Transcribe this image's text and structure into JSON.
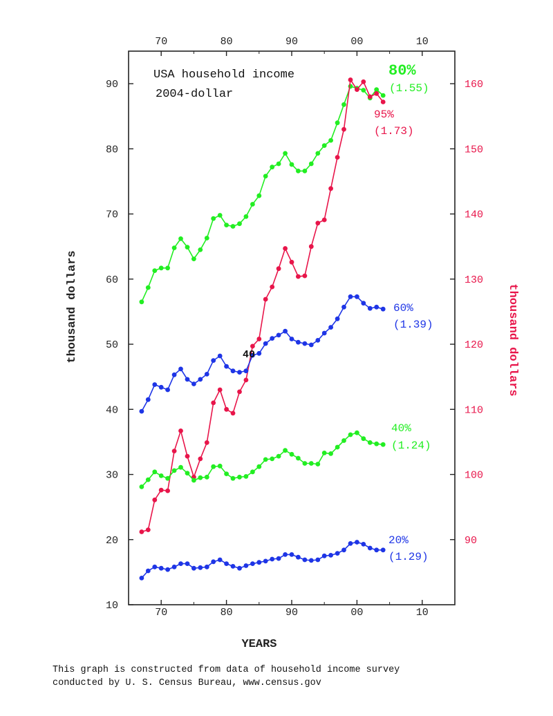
{
  "chart_data": {
    "type": "line",
    "title": "USA household income",
    "subtitle": "2004-dollar",
    "xlabel": "YEARS",
    "ylabel": "thousand dollars",
    "ylabel_right": "thousand dollars",
    "xlim": [
      1965,
      2015
    ],
    "ylim": [
      10,
      95
    ],
    "ylim_right": [
      80,
      165
    ],
    "x_ticks": [
      {
        "value": 1970,
        "label": "70"
      },
      {
        "value": 1980,
        "label": "80"
      },
      {
        "value": 1990,
        "label": "90"
      },
      {
        "value": 2000,
        "label": "00"
      },
      {
        "value": 2010,
        "label": "10"
      }
    ],
    "y_ticks": [
      "10",
      "20",
      "30",
      "40",
      "50",
      "60",
      "70",
      "80",
      "90"
    ],
    "y_ticks_right": [
      "90",
      "100",
      "110",
      "120",
      "130",
      "140",
      "150",
      "160"
    ],
    "x": [
      1967,
      1968,
      1969,
      1970,
      1971,
      1972,
      1973,
      1974,
      1975,
      1976,
      1977,
      1978,
      1979,
      1980,
      1981,
      1982,
      1983,
      1984,
      1985,
      1986,
      1987,
      1988,
      1989,
      1990,
      1991,
      1992,
      1993,
      1994,
      1995,
      1996,
      1997,
      1998,
      1999,
      2000,
      2001,
      2002,
      2003,
      2004
    ],
    "series": [
      {
        "name": "80%",
        "label": "80%",
        "ratio": "(1.55)",
        "color": "#22ee22",
        "axis": "left",
        "values": [
          56.5,
          58.7,
          61.3,
          61.7,
          61.7,
          64.8,
          66.2,
          64.9,
          63.1,
          64.5,
          66.3,
          69.3,
          69.8,
          68.3,
          68.1,
          68.5,
          69.6,
          71.5,
          72.8,
          75.8,
          77.2,
          77.7,
          79.3,
          77.6,
          76.6,
          76.6,
          77.7,
          79.3,
          80.5,
          81.3,
          84.0,
          86.8,
          89.6,
          89.3,
          89.0,
          87.8,
          89.1,
          88.2
        ]
      },
      {
        "name": "95%",
        "label": "95%",
        "ratio": "(1.73)",
        "color": "#e8154a",
        "axis": "right",
        "values": [
          91.2,
          91.5,
          96.1,
          97.6,
          97.5,
          103.6,
          106.7,
          102.8,
          99.6,
          102.4,
          104.9,
          111.0,
          113.0,
          110.0,
          109.4,
          112.7,
          114.5,
          119.7,
          120.8,
          126.9,
          128.8,
          131.6,
          134.7,
          132.6,
          130.4,
          130.5,
          135.0,
          138.6,
          139.1,
          143.9,
          148.7,
          153.0,
          160.6,
          159.1,
          160.3,
          158.0,
          158.5,
          157.2
        ]
      },
      {
        "name": "60%",
        "label": "60%",
        "ratio": "(1.39)",
        "color": "#1e35e6",
        "axis": "left",
        "values": [
          39.7,
          41.5,
          43.8,
          43.4,
          43.0,
          45.3,
          46.2,
          44.6,
          43.9,
          44.6,
          45.4,
          47.5,
          48.2,
          46.6,
          45.9,
          45.7,
          45.9,
          48.3,
          48.6,
          50.1,
          50.9,
          51.4,
          52.0,
          50.8,
          50.3,
          50.1,
          49.9,
          50.6,
          51.7,
          52.6,
          53.9,
          55.7,
          57.3,
          57.3,
          56.3,
          55.5,
          55.7,
          55.4
        ]
      },
      {
        "name": "40%",
        "label": "40%",
        "ratio": "(1.24)",
        "color": "#22ee22",
        "axis": "left",
        "values": [
          28.1,
          29.2,
          30.4,
          29.8,
          29.4,
          30.6,
          31.1,
          30.2,
          29.1,
          29.5,
          29.6,
          31.2,
          31.3,
          30.1,
          29.4,
          29.6,
          29.7,
          30.4,
          31.2,
          32.3,
          32.4,
          32.8,
          33.7,
          33.1,
          32.5,
          31.7,
          31.7,
          31.6,
          33.3,
          33.2,
          34.2,
          35.2,
          36.1,
          36.4,
          35.5,
          34.9,
          34.7,
          34.6
        ]
      },
      {
        "name": "20%",
        "label": "20%",
        "ratio": "(1.29)",
        "color": "#1e35e6",
        "axis": "left",
        "values": [
          14.1,
          15.2,
          15.8,
          15.6,
          15.4,
          15.8,
          16.3,
          16.3,
          15.6,
          15.7,
          15.8,
          16.6,
          16.9,
          16.3,
          15.9,
          15.6,
          16.0,
          16.3,
          16.5,
          16.7,
          17.0,
          17.1,
          17.7,
          17.7,
          17.3,
          16.9,
          16.8,
          16.9,
          17.5,
          17.6,
          17.9,
          18.4,
          19.4,
          19.6,
          19.3,
          18.7,
          18.4,
          18.4
        ]
      }
    ],
    "annotations": [
      {
        "text": "40",
        "x": 1983.5,
        "y": 50
      }
    ],
    "footnote": [
      "This graph is constructed from data of household income survey",
      "conducted by U. S. Census Bureau, www.census.gov"
    ]
  },
  "colors": {
    "green": "#22ee22",
    "red": "#e8154a",
    "blue": "#1e35e6",
    "axis": "#222222"
  }
}
